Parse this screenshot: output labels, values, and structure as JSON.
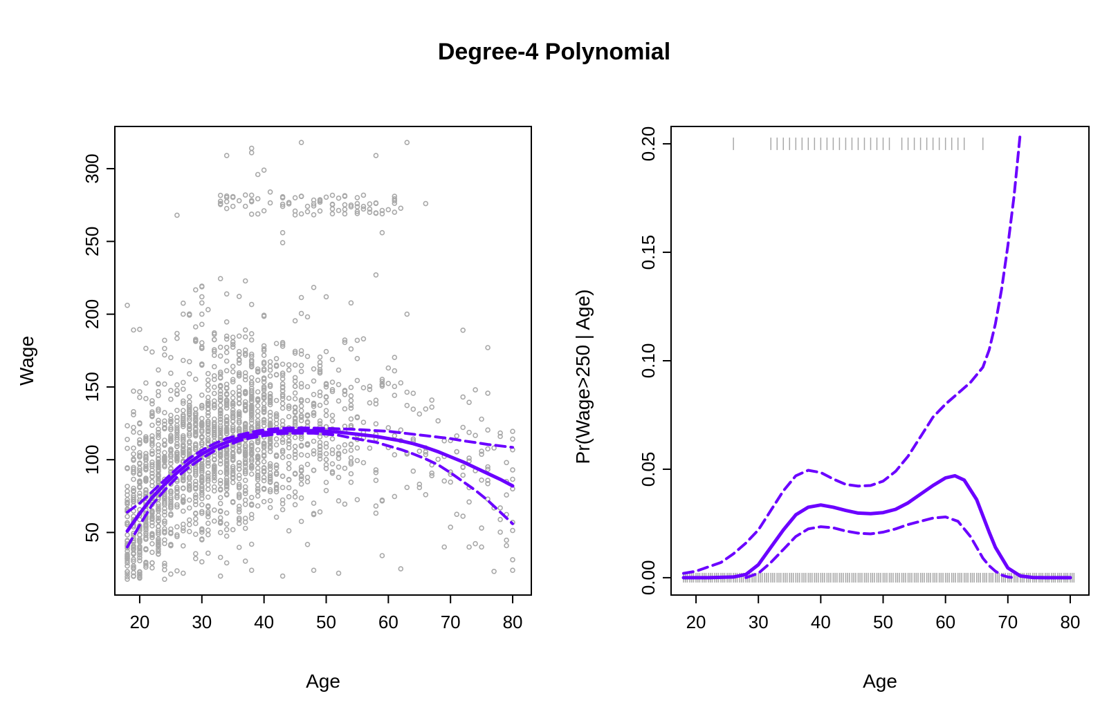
{
  "figure_title": "Degree-4 Polynomial",
  "colors": {
    "fit": "#6B00FF",
    "points": "#A8A8A8",
    "rug": "#A8A8A8",
    "axis": "#000000"
  },
  "chart_data": [
    {
      "type": "scatter",
      "title": "",
      "xlabel": "Age",
      "ylabel": "Wage",
      "xlim": [
        16,
        83
      ],
      "ylim": [
        7,
        329
      ],
      "xticks": [
        20,
        30,
        40,
        50,
        60,
        70,
        80
      ],
      "yticks": [
        50,
        100,
        150,
        200,
        250,
        300
      ],
      "grid": false,
      "points_note": "Wage vs Age scatter (approx. 3000 points, gray open circles)",
      "highlighted_points": [
        {
          "x": 34,
          "y": 309
        },
        {
          "x": 38,
          "y": 314
        },
        {
          "x": 38,
          "y": 311
        },
        {
          "x": 46,
          "y": 318
        },
        {
          "x": 58,
          "y": 309
        },
        {
          "x": 63,
          "y": 318
        },
        {
          "x": 40,
          "y": 299
        },
        {
          "x": 39,
          "y": 296
        },
        {
          "x": 26,
          "y": 268
        },
        {
          "x": 33,
          "y": 276
        },
        {
          "x": 36,
          "y": 278
        },
        {
          "x": 41,
          "y": 284
        },
        {
          "x": 43,
          "y": 280
        },
        {
          "x": 46,
          "y": 281
        },
        {
          "x": 49,
          "y": 278
        },
        {
          "x": 51,
          "y": 269
        },
        {
          "x": 53,
          "y": 281
        },
        {
          "x": 55,
          "y": 276
        },
        {
          "x": 59,
          "y": 269
        },
        {
          "x": 61,
          "y": 281
        },
        {
          "x": 66,
          "y": 276
        },
        {
          "x": 43,
          "y": 256
        },
        {
          "x": 59,
          "y": 256
        },
        {
          "x": 58,
          "y": 227
        },
        {
          "x": 50,
          "y": 212
        },
        {
          "x": 72,
          "y": 189
        },
        {
          "x": 76,
          "y": 177
        },
        {
          "x": 21,
          "y": 142
        },
        {
          "x": 24,
          "y": 172
        },
        {
          "x": 27,
          "y": 200
        },
        {
          "x": 30,
          "y": 200
        },
        {
          "x": 63,
          "y": 200
        },
        {
          "x": 74,
          "y": 148
        },
        {
          "x": 78,
          "y": 116
        },
        {
          "x": 80,
          "y": 93
        },
        {
          "x": 80,
          "y": 80
        },
        {
          "x": 75,
          "y": 53
        },
        {
          "x": 73,
          "y": 40
        },
        {
          "x": 69,
          "y": 40
        },
        {
          "x": 62,
          "y": 25
        },
        {
          "x": 52,
          "y": 22
        },
        {
          "x": 48,
          "y": 24
        },
        {
          "x": 43,
          "y": 20
        },
        {
          "x": 38,
          "y": 24
        },
        {
          "x": 33,
          "y": 20
        },
        {
          "x": 27,
          "y": 22
        },
        {
          "x": 19,
          "y": 27
        }
      ],
      "series": [
        {
          "role": "fit",
          "style": "solid",
          "x": [
            18,
            20,
            22,
            24,
            26,
            28,
            30,
            32,
            34,
            36,
            38,
            40,
            42,
            44,
            46,
            48,
            50,
            52,
            54,
            56,
            58,
            60,
            62,
            64,
            66,
            68,
            70,
            72,
            74,
            76,
            78,
            80
          ],
          "y": [
            51,
            63,
            74,
            83,
            91,
            98,
            104,
            108.5,
            112,
            115,
            117,
            118.5,
            119.5,
            120,
            120,
            120,
            119.5,
            119,
            118,
            117,
            116,
            114.5,
            113,
            111,
            108.5,
            105.5,
            102,
            98.5,
            94.5,
            90.5,
            86.5,
            82
          ]
        },
        {
          "role": "upper-band",
          "style": "dashed",
          "x": [
            18,
            20,
            22,
            24,
            26,
            28,
            30,
            32,
            34,
            36,
            38,
            40,
            42,
            44,
            46,
            48,
            50,
            52,
            54,
            56,
            58,
            60,
            62,
            64,
            66,
            68,
            70,
            72,
            74,
            76,
            78,
            80
          ],
          "y": [
            64,
            70,
            78,
            86,
            94,
            101,
            106.5,
            111,
            114.5,
            117,
            119,
            120.5,
            121.3,
            121.8,
            121.8,
            121.8,
            121.5,
            121.2,
            121,
            120.5,
            120,
            119.5,
            118.5,
            117.5,
            116.5,
            115.5,
            114.5,
            113,
            111.8,
            110.5,
            109.5,
            108.5
          ]
        },
        {
          "role": "lower-band",
          "style": "dashed",
          "x": [
            18,
            20,
            22,
            24,
            26,
            28,
            30,
            32,
            34,
            36,
            38,
            40,
            42,
            44,
            46,
            48,
            50,
            52,
            54,
            56,
            58,
            60,
            62,
            64,
            66,
            68,
            70,
            72,
            74,
            76,
            78,
            80
          ],
          "y": [
            40,
            55,
            69,
            79,
            88,
            95,
            101,
            106,
            109.5,
            113,
            115,
            116.5,
            117.7,
            118.2,
            118.2,
            118.2,
            117.5,
            116.8,
            115,
            113.5,
            112,
            109.5,
            107,
            104,
            100.5,
            96.5,
            91,
            85,
            79,
            72,
            64,
            56
          ]
        }
      ]
    },
    {
      "type": "line",
      "title": "",
      "xlabel": "Age",
      "ylabel": "Pr(Wage>250 | Age)",
      "xlim": [
        16,
        83
      ],
      "ylim": [
        -0.008,
        0.208
      ],
      "xticks": [
        20,
        30,
        40,
        50,
        60,
        70,
        80
      ],
      "yticks": [
        0.0,
        0.05,
        0.1,
        0.15,
        0.2
      ],
      "ytick_labels": [
        "0.00",
        "0.05",
        "0.10",
        "0.15",
        "0.20"
      ],
      "grid": false,
      "series": [
        {
          "role": "fit",
          "style": "solid",
          "x": [
            18,
            22,
            26,
            28,
            30,
            32,
            34,
            36,
            38,
            40,
            42,
            44,
            46,
            48,
            50,
            52,
            54,
            56,
            58,
            60,
            61.5,
            63,
            65,
            67,
            68,
            70,
            72,
            74,
            76,
            80
          ],
          "y": [
            0.0,
            0.0,
            0.0003,
            0.0015,
            0.006,
            0.014,
            0.022,
            0.029,
            0.0325,
            0.0335,
            0.0325,
            0.031,
            0.0298,
            0.0295,
            0.03,
            0.0315,
            0.0345,
            0.0385,
            0.0425,
            0.046,
            0.047,
            0.045,
            0.036,
            0.021,
            0.014,
            0.0045,
            0.0008,
            0.0001,
            0.0,
            0.0
          ]
        },
        {
          "role": "upper-band",
          "style": "dashed",
          "x": [
            18,
            20,
            22,
            24,
            26,
            28,
            30,
            32,
            34,
            36,
            38,
            40,
            42,
            44,
            46,
            48,
            50,
            52,
            54,
            56,
            58,
            60,
            62,
            64,
            66,
            67,
            68,
            69,
            70,
            71,
            72
          ],
          "y": [
            0.002,
            0.003,
            0.005,
            0.007,
            0.011,
            0.016,
            0.022,
            0.031,
            0.04,
            0.047,
            0.0495,
            0.0485,
            0.0455,
            0.043,
            0.0422,
            0.0425,
            0.0445,
            0.049,
            0.056,
            0.065,
            0.074,
            0.08,
            0.085,
            0.09,
            0.097,
            0.105,
            0.117,
            0.133,
            0.153,
            0.176,
            0.205
          ]
        },
        {
          "role": "lower-band",
          "style": "dashed",
          "x": [
            28,
            30,
            32,
            34,
            36,
            38,
            40,
            42,
            44,
            46,
            48,
            50,
            52,
            54,
            56,
            58,
            60,
            62,
            64,
            65,
            66,
            67,
            68,
            69,
            70,
            71
          ],
          "y": [
            0.0,
            0.002,
            0.007,
            0.013,
            0.019,
            0.0225,
            0.0235,
            0.023,
            0.0215,
            0.0205,
            0.0202,
            0.021,
            0.0225,
            0.0245,
            0.026,
            0.0275,
            0.028,
            0.026,
            0.019,
            0.014,
            0.009,
            0.0055,
            0.003,
            0.0012,
            0.0003,
            0.0
          ]
        }
      ],
      "rug_top_ages": [
        26,
        32,
        33,
        34,
        35,
        36,
        37,
        38,
        39,
        40,
        41,
        42,
        43,
        44,
        45,
        46,
        47,
        48,
        49,
        50,
        51,
        53,
        54,
        55,
        56,
        57,
        58,
        59,
        60,
        61,
        62,
        63,
        66
      ],
      "rug_bottom_age_range": [
        18,
        80
      ]
    }
  ]
}
